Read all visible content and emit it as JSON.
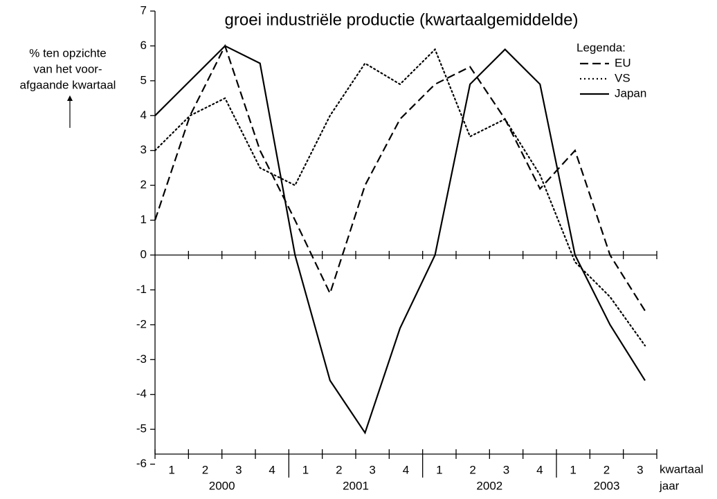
{
  "chart_data": {
    "type": "line",
    "title": "groei industriële productie (kwartaalgemiddelde)",
    "y_label": [
      "% ten opzichte",
      "van het voor-",
      "afgaande kwartaal"
    ],
    "x_label": "kwartaal",
    "year_label": "jaar",
    "legend_title": "Legenda:",
    "categories": [
      "1",
      "2",
      "3",
      "4",
      "1",
      "2",
      "3",
      "4",
      "1",
      "2",
      "3",
      "4",
      "1",
      "2",
      "3"
    ],
    "years": [
      "2000",
      "2001",
      "2002",
      "2003"
    ],
    "year_quarters": [
      4,
      4,
      4,
      3
    ],
    "ylim": [
      -7,
      7
    ],
    "yticks": [
      -6,
      -5,
      -4,
      -3,
      -2,
      -1,
      0,
      1,
      2,
      3,
      4,
      5,
      6,
      7
    ],
    "series": [
      {
        "name": "EU",
        "color": "#000000",
        "style": "dashed",
        "values": [
          1,
          4,
          6,
          3,
          1,
          -1.1,
          2,
          3.9,
          4.9,
          5.4,
          3.9,
          1.9,
          3,
          0,
          -1.6
        ]
      },
      {
        "name": "VS",
        "color": "#000000",
        "style": "dotted",
        "values": [
          3,
          4,
          4.5,
          2.5,
          2,
          4,
          5.5,
          4.9,
          5.9,
          3.4,
          3.9,
          2.3,
          -0.2,
          -1.2,
          -2.6
        ]
      },
      {
        "name": "Japan",
        "color": "#000000",
        "style": "solid",
        "values": [
          4,
          5,
          6,
          5.5,
          0,
          -3.6,
          -5.1,
          -2.1,
          0,
          4.9,
          5.9,
          4.9,
          0,
          -2,
          -3.6
        ]
      }
    ]
  }
}
